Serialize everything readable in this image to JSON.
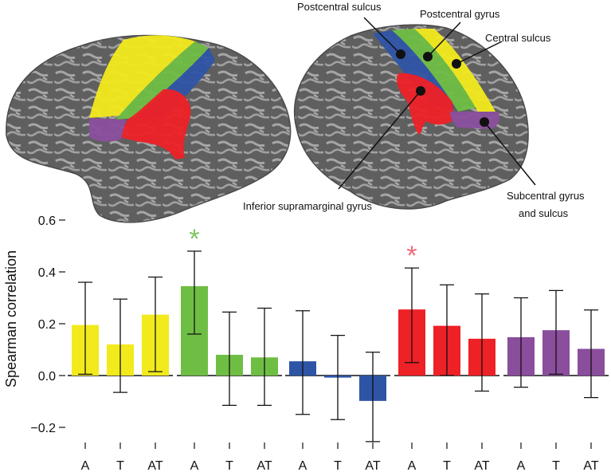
{
  "brain_labels": {
    "postcentral_sulcus": "Postcentral sulcus",
    "postcentral_gyrus": "Postcentral gyrus",
    "central_sulcus": "Central sulcus",
    "inferior_supramarginal_gyrus": "Inferior supramarginal gyrus",
    "subcentral_line1": "Subcentral gyrus",
    "subcentral_line2": "and sulcus"
  },
  "colors": {
    "yellow": "#f2ea1c",
    "green": "#6fbe44",
    "blue": "#2e54a6",
    "red": "#ee2126",
    "purple": "#8a4e9d",
    "brain_dark": "#5e5e5e",
    "brain_light": "#a3a3a3",
    "star_green": "#7dc460",
    "star_red": "#ef6b78"
  },
  "chart_data": {
    "type": "bar",
    "ylabel": "Spearman correlation",
    "ylim": [
      -0.3,
      0.6
    ],
    "yticks": [
      {
        "value": 0.6,
        "label": "0.6"
      },
      {
        "value": 0.4,
        "label": "0.4"
      },
      {
        "value": 0.2,
        "label": "0.2"
      },
      {
        "value": 0.0,
        "label": "0.0"
      },
      {
        "value": -0.2,
        "label": "−0.2"
      }
    ],
    "groups": [
      {
        "region": "yellow",
        "categories": [
          "A",
          "T",
          "AT"
        ],
        "values": [
          0.195,
          0.12,
          0.235
        ],
        "err_low": [
          0.005,
          -0.065,
          0.015
        ],
        "err_high": [
          0.36,
          0.295,
          0.38
        ],
        "significant": []
      },
      {
        "region": "green",
        "categories": [
          "A",
          "T",
          "AT"
        ],
        "values": [
          0.345,
          0.08,
          0.07
        ],
        "err_low": [
          0.16,
          -0.115,
          -0.115
        ],
        "err_high": [
          0.48,
          0.245,
          0.26
        ],
        "significant": [
          "A"
        ]
      },
      {
        "region": "blue",
        "categories": [
          "A",
          "T",
          "AT"
        ],
        "values": [
          0.055,
          -0.008,
          -0.098
        ],
        "err_low": [
          -0.15,
          -0.17,
          -0.255
        ],
        "err_high": [
          0.25,
          0.155,
          0.09
        ],
        "significant": []
      },
      {
        "region": "red",
        "categories": [
          "A",
          "T",
          "AT"
        ],
        "values": [
          0.255,
          0.192,
          0.142
        ],
        "err_low": [
          0.05,
          0.0,
          -0.06
        ],
        "err_high": [
          0.415,
          0.35,
          0.315
        ],
        "significant": [
          "A"
        ]
      },
      {
        "region": "purple",
        "categories": [
          "A",
          "T",
          "AT"
        ],
        "values": [
          0.148,
          0.175,
          0.103
        ],
        "err_low": [
          -0.045,
          0.005,
          -0.085
        ],
        "err_high": [
          0.3,
          0.328,
          0.253
        ],
        "significant": []
      }
    ],
    "significance_marker": "*"
  }
}
